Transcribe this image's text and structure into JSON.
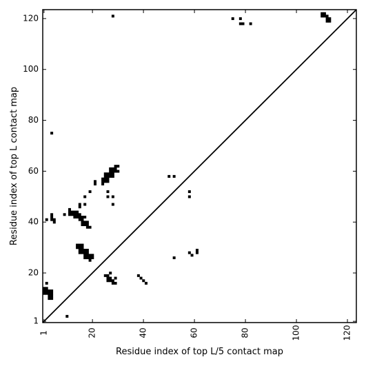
{
  "chart_data": {
    "type": "heatmap",
    "xlabel": "Residue index of top L/5 contact map",
    "ylabel": "Residue index of top L contact map",
    "xlim": [
      1,
      124
    ],
    "ylim": [
      1,
      124
    ],
    "x_ticks": [
      1,
      20,
      40,
      60,
      80,
      100,
      120
    ],
    "y_ticks": [
      1,
      20,
      40,
      60,
      80,
      100,
      120
    ],
    "diagonal": true,
    "grid": false,
    "cell_color": "#000000",
    "background_color": "#ffffff",
    "cells": [
      [
        28,
        121
      ],
      [
        75,
        120
      ],
      [
        78,
        120
      ],
      [
        78,
        118
      ],
      [
        79,
        118
      ],
      [
        82,
        118
      ],
      [
        110,
        122
      ],
      [
        111,
        122
      ],
      [
        110,
        121
      ],
      [
        111,
        121
      ],
      [
        112,
        121
      ],
      [
        112,
        120
      ],
      [
        113,
        120
      ],
      [
        112,
        119
      ],
      [
        113,
        119
      ],
      [
        4,
        75
      ],
      [
        29,
        62
      ],
      [
        30,
        62
      ],
      [
        27,
        61
      ],
      [
        28,
        61
      ],
      [
        29,
        61
      ],
      [
        27,
        60
      ],
      [
        28,
        60
      ],
      [
        29,
        60
      ],
      [
        30,
        60
      ],
      [
        25,
        59
      ],
      [
        26,
        59
      ],
      [
        27,
        59
      ],
      [
        28,
        59
      ],
      [
        25,
        58
      ],
      [
        26,
        58
      ],
      [
        27,
        58
      ],
      [
        28,
        58
      ],
      [
        24,
        57
      ],
      [
        25,
        57
      ],
      [
        26,
        57
      ],
      [
        21,
        56
      ],
      [
        24,
        56
      ],
      [
        25,
        56
      ],
      [
        26,
        56
      ],
      [
        21,
        55
      ],
      [
        24,
        55
      ],
      [
        26,
        52
      ],
      [
        19,
        52
      ],
      [
        17,
        50
      ],
      [
        26,
        50
      ],
      [
        28,
        50
      ],
      [
        15,
        47
      ],
      [
        17,
        47
      ],
      [
        28,
        47
      ],
      [
        15,
        46
      ],
      [
        11,
        45
      ],
      [
        11,
        44
      ],
      [
        12,
        44
      ],
      [
        13,
        44
      ],
      [
        14,
        44
      ],
      [
        9,
        43
      ],
      [
        11,
        43
      ],
      [
        12,
        43
      ],
      [
        13,
        43
      ],
      [
        14,
        43
      ],
      [
        15,
        43
      ],
      [
        4,
        43
      ],
      [
        4,
        42
      ],
      [
        13,
        42
      ],
      [
        14,
        42
      ],
      [
        15,
        42
      ],
      [
        16,
        42
      ],
      [
        17,
        42
      ],
      [
        2,
        41
      ],
      [
        4,
        41
      ],
      [
        5,
        41
      ],
      [
        15,
        41
      ],
      [
        16,
        41
      ],
      [
        5,
        40
      ],
      [
        16,
        40
      ],
      [
        17,
        40
      ],
      [
        18,
        40
      ],
      [
        16,
        39
      ],
      [
        17,
        39
      ],
      [
        18,
        39
      ],
      [
        18,
        38
      ],
      [
        19,
        38
      ],
      [
        50,
        58
      ],
      [
        52,
        58
      ],
      [
        58,
        52
      ],
      [
        58,
        50
      ],
      [
        14,
        31
      ],
      [
        15,
        31
      ],
      [
        16,
        31
      ],
      [
        14,
        30
      ],
      [
        15,
        30
      ],
      [
        16,
        30
      ],
      [
        15,
        29
      ],
      [
        16,
        29
      ],
      [
        17,
        29
      ],
      [
        18,
        29
      ],
      [
        15,
        28
      ],
      [
        16,
        28
      ],
      [
        17,
        28
      ],
      [
        18,
        28
      ],
      [
        17,
        27
      ],
      [
        18,
        27
      ],
      [
        19,
        27
      ],
      [
        20,
        27
      ],
      [
        17,
        26
      ],
      [
        18,
        26
      ],
      [
        19,
        26
      ],
      [
        20,
        26
      ],
      [
        19,
        25
      ],
      [
        58,
        28
      ],
      [
        61,
        29
      ],
      [
        61,
        28
      ],
      [
        59,
        27
      ],
      [
        52,
        26
      ],
      [
        27,
        20
      ],
      [
        25,
        19
      ],
      [
        26,
        19
      ],
      [
        26,
        18
      ],
      [
        27,
        18
      ],
      [
        29,
        18
      ],
      [
        26,
        17
      ],
      [
        27,
        17
      ],
      [
        28,
        17
      ],
      [
        28,
        16
      ],
      [
        29,
        16
      ],
      [
        38,
        19
      ],
      [
        39,
        18
      ],
      [
        40,
        17
      ],
      [
        41,
        16
      ],
      [
        2,
        16
      ],
      [
        1,
        14
      ],
      [
        2,
        14
      ],
      [
        1,
        13
      ],
      [
        2,
        13
      ],
      [
        3,
        13
      ],
      [
        4,
        13
      ],
      [
        1,
        12
      ],
      [
        2,
        12
      ],
      [
        3,
        12
      ],
      [
        4,
        12
      ],
      [
        3,
        11
      ],
      [
        4,
        11
      ],
      [
        3,
        10
      ],
      [
        4,
        10
      ],
      [
        10,
        3
      ]
    ]
  }
}
